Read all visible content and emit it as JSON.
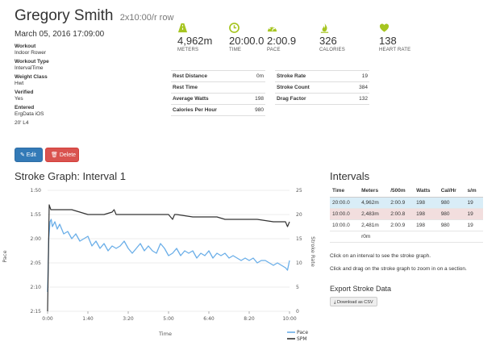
{
  "header": {
    "name": "Gregory Smith",
    "workout_desc": "2x10:00/r row",
    "date": "March 05, 2016 17:09:00"
  },
  "meta": {
    "items": [
      {
        "key": "Workout",
        "value": "Indoor Rower"
      },
      {
        "key": "Workout Type",
        "value": "IntervalTime"
      },
      {
        "key": "Weight Class",
        "value": "Hwt"
      },
      {
        "key": "Verified",
        "value": "Yes"
      },
      {
        "key": "Entered",
        "value": "ErgData iOS"
      }
    ],
    "tag": "20' L4"
  },
  "stats": [
    {
      "value": "4,962m",
      "label": "METERS"
    },
    {
      "value": "20:00.0",
      "label": "TIME"
    },
    {
      "value": "2:00.9",
      "label": "PACE"
    },
    {
      "value": "326",
      "label": "CALORIES"
    },
    {
      "value": "138",
      "label": "HEART RATE"
    }
  ],
  "details_left": [
    {
      "key": "Rest Distance",
      "value": "0m"
    },
    {
      "key": "Rest Time",
      "value": ""
    },
    {
      "key": "Average Watts",
      "value": "198"
    },
    {
      "key": "Calories Per Hour",
      "value": "980"
    }
  ],
  "details_right": [
    {
      "key": "Stroke Rate",
      "value": "19"
    },
    {
      "key": "Stroke Count",
      "value": "384"
    },
    {
      "key": "Drag Factor",
      "value": "132"
    }
  ],
  "buttons": {
    "edit": "✎ Edit",
    "delete": "🗑 Delete"
  },
  "stroke_graph": {
    "title": "Stroke Graph: Interval 1"
  },
  "chart_data": {
    "type": "line",
    "xlabel": "Time",
    "ylabel_left": "Pace",
    "ylabel_right": "Stroke Rate",
    "x_ticks": [
      "0:00",
      "1:40",
      "3:20",
      "5:00",
      "6:40",
      "8:20",
      "10:00"
    ],
    "x_range_seconds": [
      0,
      600
    ],
    "y_left_ticks": [
      "1:50",
      "1:55",
      "2:00",
      "2:05",
      "2:10",
      "2:15"
    ],
    "y_left_range_seconds": [
      110,
      135
    ],
    "y_right_ticks": [
      "25",
      "20",
      "15",
      "10",
      "5",
      "0"
    ],
    "y_right_range": [
      0,
      25
    ],
    "series": [
      {
        "name": "Pace",
        "color": "#6aaee8",
        "x": [
          0,
          3,
          6,
          9,
          12,
          18,
          24,
          30,
          40,
          50,
          60,
          70,
          80,
          90,
          100,
          110,
          120,
          130,
          140,
          150,
          160,
          170,
          180,
          190,
          200,
          210,
          220,
          230,
          240,
          250,
          260,
          270,
          280,
          290,
          300,
          310,
          320,
          330,
          340,
          350,
          360,
          370,
          380,
          390,
          400,
          410,
          420,
          430,
          440,
          450,
          460,
          470,
          480,
          490,
          500,
          510,
          520,
          530,
          540,
          550,
          560,
          570,
          580,
          590,
          595,
          600
        ],
        "y": [
          131,
          120,
          116.5,
          116,
          117.5,
          116.5,
          118,
          117,
          119,
          118.5,
          120,
          119,
          120.5,
          120,
          119.5,
          121.5,
          120.5,
          122,
          121,
          122.5,
          121.5,
          122,
          121.5,
          120.5,
          122,
          123,
          122,
          121,
          122.5,
          121.5,
          122.5,
          123,
          121,
          122,
          123.5,
          123,
          122,
          123.5,
          122.5,
          123,
          122.5,
          124,
          123,
          123.5,
          122.5,
          124,
          123,
          123.5,
          123,
          124,
          123.5,
          124,
          124.5,
          124,
          124.5,
          124,
          125,
          124.5,
          124.5,
          125,
          125.5,
          125,
          125.5,
          126,
          126.5,
          124.5
        ]
      },
      {
        "name": "SPM",
        "color": "#333333",
        "x": [
          0,
          4,
          8,
          12,
          20,
          60,
          100,
          140,
          160,
          165,
          170,
          200,
          250,
          300,
          310,
          315,
          320,
          360,
          400,
          420,
          440,
          460,
          480,
          520,
          560,
          580,
          590,
          595,
          600
        ],
        "y": [
          0,
          22,
          21,
          21,
          21,
          21,
          20,
          20,
          20.5,
          21,
          20,
          20,
          20,
          20,
          19,
          20,
          20,
          19.5,
          19.5,
          19.5,
          19,
          19,
          19,
          19,
          18.5,
          18.5,
          18.5,
          17.5,
          18.5
        ]
      }
    ],
    "legend": [
      "Pace",
      "SPM"
    ]
  },
  "intervals": {
    "title": "Intervals",
    "columns": [
      "Time",
      "Meters",
      "/500m",
      "Watts",
      "Cal/Hr",
      "s/m"
    ],
    "rows": [
      [
        "20:00.0",
        "4,962m",
        "2:00.9",
        "198",
        "980",
        "19"
      ],
      [
        "10:00.0",
        "2,483m",
        "2:00.8",
        "198",
        "980",
        "19"
      ],
      [
        "10:00.0",
        "2,481m",
        "2:00.9",
        "198",
        "980",
        "19"
      ],
      [
        "",
        "r0m",
        "",
        "",
        "",
        ""
      ]
    ],
    "note1": "Click on an interval to see the stroke graph.",
    "note2": "Click and drag on the stroke graph to zoom in on a section.",
    "export_title": "Export Stroke Data",
    "download_label": "⤓ Download as CSV"
  }
}
